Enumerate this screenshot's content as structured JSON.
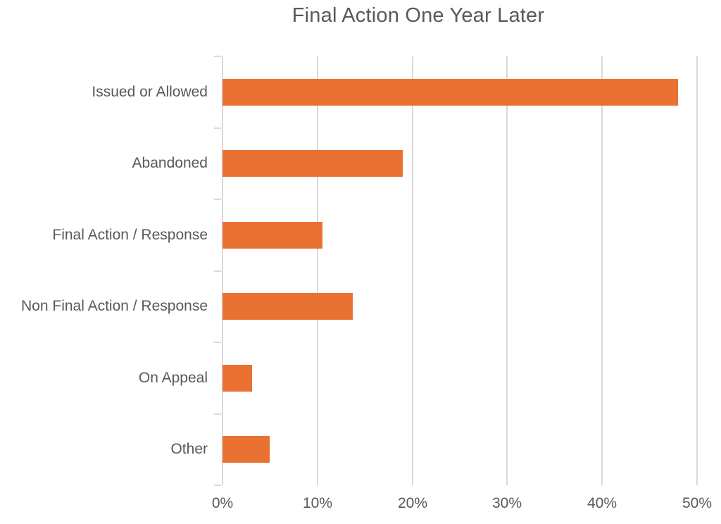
{
  "title": "Final Action One Year Later",
  "colors": {
    "bar": "#E97132",
    "gridline": "#D9D9D9",
    "text": "#595959",
    "background": "#FFFFFF"
  },
  "chart_data": {
    "type": "bar",
    "orientation": "horizontal",
    "title": "Final Action One Year Later",
    "categories": [
      "Issued or Allowed",
      "Abandoned",
      "Final Action / Response",
      "Non Final Action / Response",
      "On Appeal",
      "Other"
    ],
    "values": [
      48.0,
      19.0,
      10.5,
      13.75,
      3.1,
      5.0
    ],
    "unit": "%",
    "series_name": "Final Action One Year Later",
    "xlabel": "",
    "ylabel": "",
    "xlim": [
      0,
      50
    ],
    "x_ticks": [
      "0%",
      "10%",
      "20%",
      "30%",
      "40%",
      "50%"
    ],
    "x_tick_values": [
      0,
      10,
      20,
      30,
      40,
      50
    ],
    "grid": true,
    "legend": false
  }
}
